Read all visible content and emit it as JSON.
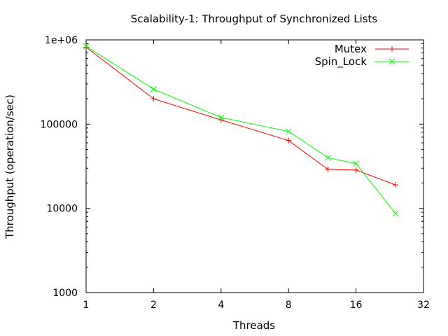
{
  "chart_data": {
    "type": "line",
    "title": "Scalability-1: Throughput of Synchronized Lists",
    "xlabel": "Threads",
    "ylabel": "Throughput (operation/sec)",
    "x_scale": "log2",
    "y_scale": "log10",
    "xlim": [
      1,
      32
    ],
    "ylim": [
      1000,
      1000000
    ],
    "x_ticks": [
      1,
      2,
      4,
      8,
      16,
      32
    ],
    "x_tick_labels": [
      "1",
      "2",
      "4",
      "8",
      "16",
      "32"
    ],
    "y_ticks": [
      1000,
      10000,
      100000,
      1000000
    ],
    "y_tick_labels": [
      "1000",
      "10000",
      "100000",
      "1e+06"
    ],
    "grid": false,
    "legend_position": "top-right",
    "series": [
      {
        "name": "Mutex",
        "color": "#ff0000",
        "marker": "plus",
        "x": [
          1,
          2,
          4,
          8,
          12,
          16,
          24
        ],
        "y": [
          820000,
          200000,
          112000,
          64000,
          29000,
          28500,
          19000
        ]
      },
      {
        "name": "Spin_Lock",
        "color": "#00ff00",
        "marker": "cross",
        "x": [
          1,
          2,
          4,
          8,
          12,
          16,
          24
        ],
        "y": [
          840000,
          260000,
          120000,
          82000,
          40000,
          34000,
          8700
        ]
      }
    ]
  }
}
